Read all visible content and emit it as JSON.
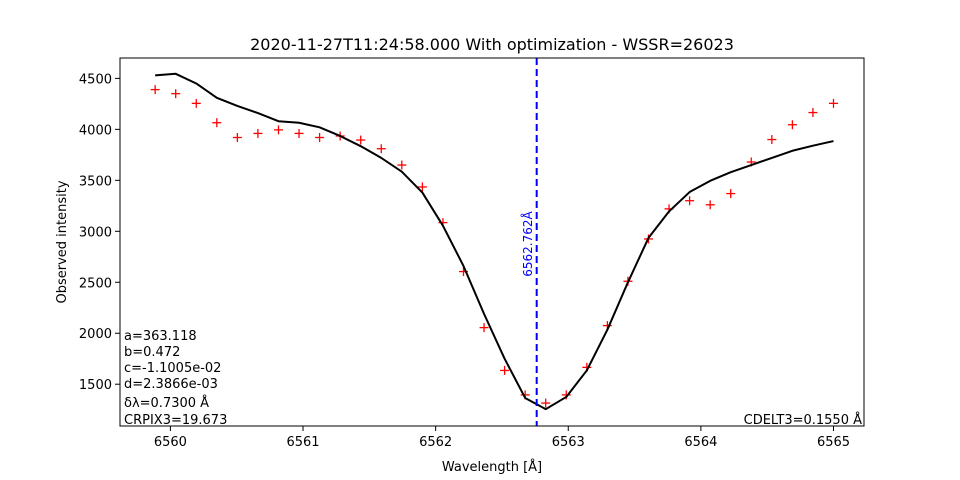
{
  "chart_data": {
    "type": "line",
    "title": "2020-11-27T11:24:58.000 With optimization - WSSR=26023",
    "xlabel": "Wavelength [Å]",
    "ylabel": "Observed intensity",
    "xlim": [
      6559.62,
      6565.23
    ],
    "ylim": [
      1090,
      4700
    ],
    "xticks": [
      6560,
      6561,
      6562,
      6563,
      6564,
      6565
    ],
    "yticks": [
      1500,
      2000,
      2500,
      3000,
      3500,
      4000,
      4500
    ],
    "grid": false,
    "series": [
      {
        "kind": "scatter",
        "color": "#ff0000",
        "marker": "plus",
        "x": [
          6559.885,
          6560.04,
          6560.195,
          6560.35,
          6560.505,
          6560.66,
          6560.815,
          6560.97,
          6561.125,
          6561.28,
          6561.435,
          6561.59,
          6561.745,
          6561.9,
          6562.055,
          6562.21,
          6562.365,
          6562.52,
          6562.675,
          6562.83,
          6562.985,
          6563.14,
          6563.295,
          6563.45,
          6563.605,
          6563.76,
          6563.915,
          6564.07,
          6564.225,
          6564.38,
          6564.535,
          6564.69,
          6564.845,
          6565.0
        ],
        "y": [
          4390,
          4350,
          4255,
          4065,
          3920,
          3960,
          3995,
          3960,
          3920,
          3935,
          3895,
          3810,
          3650,
          3435,
          3085,
          2605,
          2055,
          1635,
          1395,
          1315,
          1395,
          1665,
          2075,
          2510,
          2925,
          3220,
          3300,
          3260,
          3370,
          3680,
          3900,
          4045,
          4165,
          4255
        ]
      },
      {
        "kind": "line",
        "color": "#000000",
        "x": [
          6559.885,
          6560.04,
          6560.195,
          6560.35,
          6560.505,
          6560.66,
          6560.815,
          6560.97,
          6561.125,
          6561.28,
          6561.435,
          6561.59,
          6561.745,
          6561.9,
          6562.055,
          6562.21,
          6562.365,
          6562.52,
          6562.675,
          6562.83,
          6562.985,
          6563.14,
          6563.295,
          6563.45,
          6563.605,
          6563.76,
          6563.915,
          6564.07,
          6564.225,
          6564.38,
          6564.535,
          6564.69,
          6564.845,
          6565.0
        ],
        "y": [
          4530,
          4545,
          4450,
          4310,
          4230,
          4160,
          4080,
          4065,
          4020,
          3935,
          3835,
          3720,
          3585,
          3380,
          3055,
          2660,
          2190,
          1750,
          1365,
          1255,
          1375,
          1635,
          2035,
          2500,
          2935,
          3195,
          3385,
          3495,
          3580,
          3650,
          3720,
          3790,
          3840,
          3885
        ]
      }
    ],
    "vline": {
      "x": 6562.762,
      "color": "#0000ff",
      "style": "dashed",
      "label": "6562.762Å"
    },
    "annotations": {
      "params": [
        "a=363.118",
        "b=0.472",
        "c=-1.1005e-02",
        "d=2.3866e-03",
        "δλ=0.7300 Å",
        "CRPIX3=19.673"
      ],
      "cdelt": "CDELT3=0.1550 Å"
    }
  }
}
